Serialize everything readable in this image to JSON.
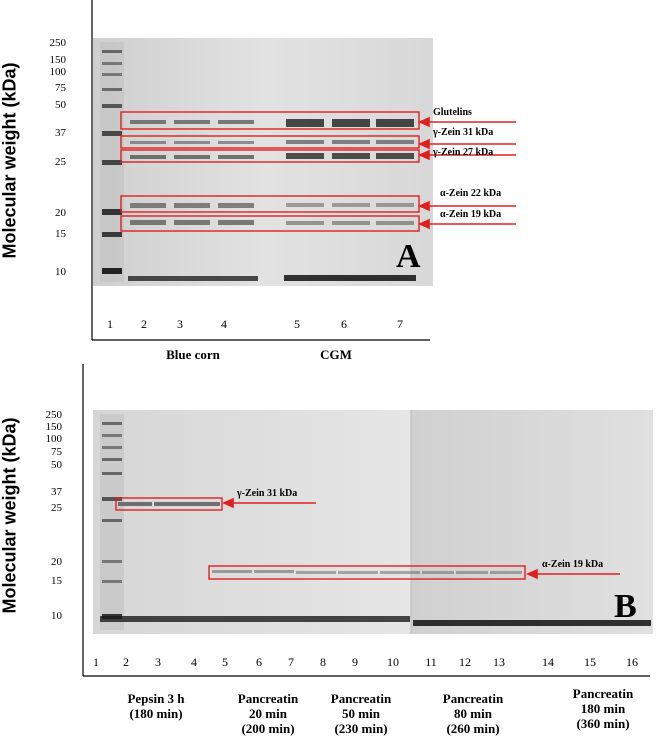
{
  "panel_a": {
    "label": "A",
    "y_axis_label": "Molecular weight (kDa)",
    "mw_markers": [
      "250",
      "150",
      "100",
      "75",
      "50",
      "37",
      "25",
      "20",
      "15",
      "10"
    ],
    "lanes": [
      "1",
      "2",
      "3",
      "4",
      "5",
      "6",
      "7"
    ],
    "groups": [
      "Blue corn",
      "CGM"
    ],
    "annotations": [
      "Glutelins",
      "γ-Zein 31 kDa",
      "γ-Zein 27 kDa",
      "α-Zein 22 kDa",
      "α-Zein 19 kDa"
    ]
  },
  "panel_b": {
    "label": "B",
    "y_axis_label": "Molecular weight (kDa)",
    "mw_markers": [
      "250",
      "150",
      "100",
      "75",
      "50",
      "37",
      "25",
      "20",
      "15",
      "10"
    ],
    "lanes": [
      "1",
      "2",
      "3",
      "4",
      "5",
      "6",
      "7",
      "8",
      "9",
      "10",
      "11",
      "12",
      "13",
      "14",
      "15",
      "16"
    ],
    "annotations": [
      "γ-Zein 31 kDa",
      "α-Zein 19 kDa"
    ],
    "groups": [
      {
        "line1": "Pepsin 3 h",
        "line2": "(180 min)",
        "line3": ""
      },
      {
        "line1": "Pancreatin",
        "line2": "20 min",
        "line3": "(200 min)"
      },
      {
        "line1": "Pancreatin",
        "line2": "50 min",
        "line3": "(230 min)"
      },
      {
        "line1": "Pancreatin",
        "line2": "80 min",
        "line3": "(260 min)"
      },
      {
        "line1": "Pancreatin",
        "line2": "180 min",
        "line3": "(360 min)"
      }
    ]
  },
  "colors": {
    "highlight": "#e02020",
    "gel_light": "#dcdcdc",
    "band_dark": "#3a3a3a"
  }
}
